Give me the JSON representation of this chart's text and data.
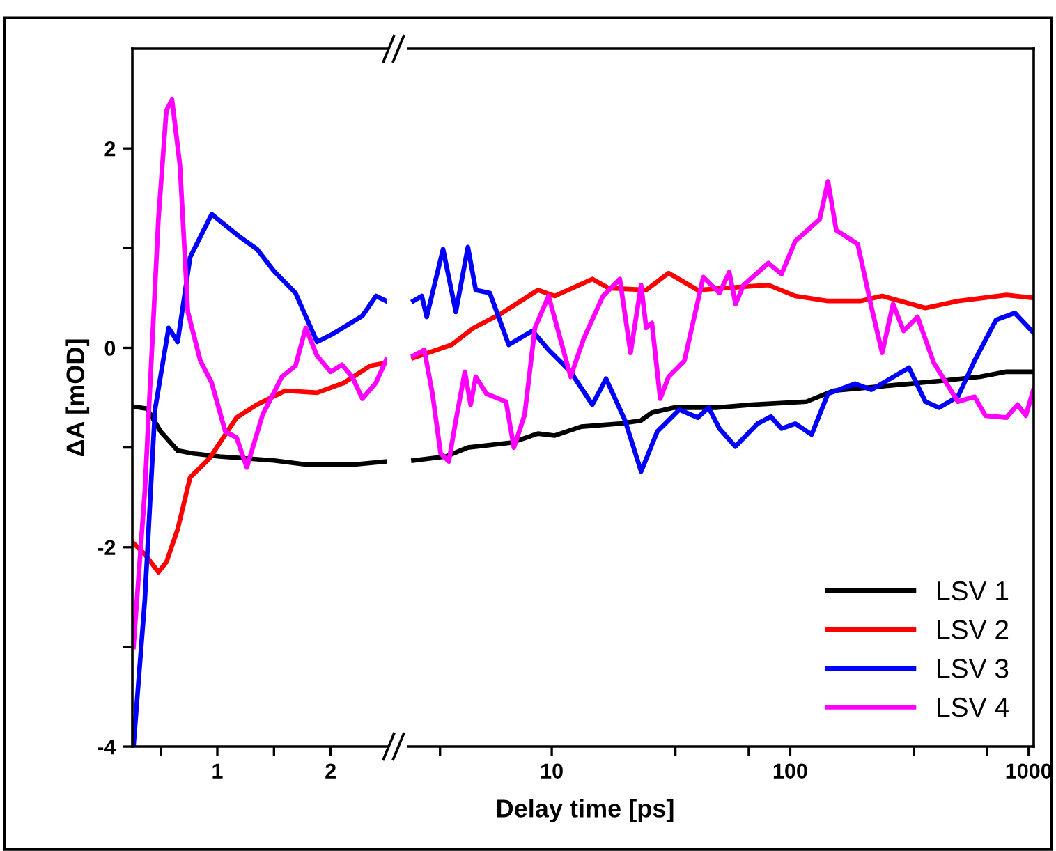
{
  "chart_data": [
    {
      "type": "line",
      "ylabel": "ΔA [mOD]",
      "xlim": [
        0.25,
        2.5
      ],
      "xticks": [
        {
          "value": 0.5,
          "label": null
        },
        1,
        {
          "value": 1.5,
          "label": null
        },
        2
      ],
      "ylim": [
        -4,
        3
      ],
      "yticks": [
        -4,
        {
          "value": -3,
          "label": null
        },
        -2,
        {
          "value": -1,
          "label": null
        },
        0,
        {
          "value": 1,
          "label": null
        },
        2
      ],
      "marker": "none",
      "line_style": "solid",
      "grid": false,
      "series": [
        {
          "color": "#000000",
          "x": [
            0.26,
            0.38,
            0.5,
            0.65,
            0.79,
            1.02,
            1.5,
            1.78,
            2.21,
            2.49
          ],
          "values": [
            -0.59,
            -0.61,
            -0.84,
            -1.03,
            -1.06,
            -1.09,
            -1.13,
            -1.17,
            -1.17,
            -1.14
          ]
        },
        {
          "color": "#ff0000",
          "x": [
            0.26,
            0.36,
            0.48,
            0.55,
            0.65,
            0.76,
            0.93,
            1.17,
            1.35,
            1.6,
            1.88,
            2.12,
            2.35,
            2.49
          ],
          "values": [
            -1.96,
            -2.07,
            -2.25,
            -2.15,
            -1.82,
            -1.3,
            -1.11,
            -0.7,
            -0.57,
            -0.43,
            -0.45,
            -0.35,
            -0.18,
            -0.15
          ]
        },
        {
          "color": "#0000ff",
          "x": [
            0.26,
            0.36,
            0.45,
            0.57,
            0.65,
            0.76,
            0.95,
            1.19,
            1.35,
            1.5,
            1.69,
            1.88,
            2.02,
            2.28,
            2.4,
            2.49
          ],
          "values": [
            -4.0,
            -2.53,
            -0.62,
            0.2,
            0.06,
            0.91,
            1.34,
            1.12,
            0.99,
            0.77,
            0.55,
            0.06,
            0.14,
            0.32,
            0.52,
            0.47
          ]
        },
        {
          "color": "#ff00ff",
          "x": [
            0.26,
            0.36,
            0.48,
            0.55,
            0.6,
            0.67,
            0.74,
            0.85,
            0.95,
            1.07,
            1.17,
            1.26,
            1.4,
            1.57,
            1.69,
            1.78,
            1.88,
            2.0,
            2.1,
            2.19,
            2.28,
            2.4,
            2.49
          ],
          "values": [
            -3.0,
            -1.44,
            1.29,
            2.38,
            2.49,
            1.83,
            0.36,
            -0.13,
            -0.35,
            -0.84,
            -0.9,
            -1.2,
            -0.67,
            -0.29,
            -0.18,
            0.2,
            -0.08,
            -0.24,
            -0.17,
            -0.29,
            -0.51,
            -0.35,
            -0.12
          ]
        }
      ]
    },
    {
      "type": "line",
      "xlabel": "Delay time [ps]",
      "log": "x",
      "xlim": [
        2.5,
        1050
      ],
      "xticks": [
        {
          "value": 3.4,
          "label": null
        },
        10,
        {
          "value": 33,
          "label": null
        },
        {
          "value": 67,
          "label": null
        },
        100,
        {
          "value": 330,
          "label": null
        },
        {
          "value": 670,
          "label": null
        },
        1000
      ],
      "ylim": [
        -4,
        3
      ],
      "tick_labels": "x",
      "marker": "none",
      "line_style": "solid",
      "grid": false,
      "legend": "bottom right",
      "series": [
        {
          "name": "LSV 1",
          "color": "#000000",
          "x": [
            2.63,
            3.6,
            4.45,
            6.8,
            8.75,
            10.3,
            13.3,
            19.3,
            23.6,
            26.3,
            32.6,
            49,
            69,
            117,
            152,
            256,
            432,
            625,
            807,
            1050
          ],
          "values": [
            -1.13,
            -1.09,
            -1.0,
            -0.95,
            -0.86,
            -0.88,
            -0.79,
            -0.76,
            -0.73,
            -0.65,
            -0.6,
            -0.6,
            -0.57,
            -0.54,
            -0.43,
            -0.38,
            -0.33,
            -0.29,
            -0.24,
            -0.24
          ]
        },
        {
          "name": "LSV 2",
          "color": "#ff0000",
          "x": [
            2.63,
            3.8,
            4.7,
            6.1,
            8.75,
            10.3,
            14.8,
            17.3,
            24.9,
            30.9,
            40.9,
            81,
            105,
            144,
            197,
            243,
            369,
            505,
            807,
            1050
          ],
          "values": [
            -0.1,
            0.03,
            0.2,
            0.34,
            0.58,
            0.52,
            0.69,
            0.6,
            0.58,
            0.75,
            0.58,
            0.63,
            0.52,
            0.47,
            0.47,
            0.52,
            0.4,
            0.47,
            0.53,
            0.5
          ]
        },
        {
          "name": "LSV 3",
          "color": "#0000ff",
          "x": [
            2.63,
            2.85,
            2.99,
            3.5,
            3.96,
            4.45,
            4.8,
            5.5,
            6.6,
            8.3,
            9.7,
            12,
            14.8,
            16.9,
            20.3,
            23.7,
            27.7,
            34.3,
            40.9,
            45.5,
            50.5,
            58.9,
            73,
            83,
            92,
            105,
            123,
            144,
            187,
            219,
            315,
            369,
            421,
            505,
            593,
            730,
            875,
            1050
          ],
          "values": [
            0.47,
            0.52,
            0.31,
            0.99,
            0.36,
            1.01,
            0.58,
            0.55,
            0.03,
            0.17,
            -0.02,
            -0.24,
            -0.57,
            -0.31,
            -0.73,
            -1.24,
            -0.84,
            -0.62,
            -0.7,
            -0.6,
            -0.81,
            -0.99,
            -0.76,
            -0.69,
            -0.81,
            -0.76,
            -0.87,
            -0.46,
            -0.36,
            -0.42,
            -0.2,
            -0.54,
            -0.6,
            -0.49,
            -0.13,
            0.28,
            0.35,
            0.15
          ]
        },
        {
          "name": "LSV 4",
          "color": "#ff00ff",
          "x": [
            2.63,
            2.92,
            3.16,
            3.42,
            3.7,
            3.96,
            4.32,
            4.57,
            4.8,
            5.32,
            6.43,
            6.94,
            7.7,
            8.5,
            9.7,
            12,
            13.6,
            16.4,
            19.3,
            21.4,
            23.7,
            24.9,
            26.3,
            28.5,
            30.9,
            36,
            43.2,
            50.5,
            55.5,
            59,
            63.8,
            81,
            92,
            105,
            133,
            144,
            156,
            192,
            219,
            243,
            270,
            299,
            342,
            400,
            505,
            593,
            659,
            807,
            898,
            973,
            1050
          ],
          "values": [
            -0.08,
            -0.02,
            -0.46,
            -1.06,
            -1.14,
            -0.73,
            -0.24,
            -0.57,
            -0.29,
            -0.46,
            -0.54,
            -1.0,
            -0.67,
            0.2,
            0.52,
            -0.29,
            0.09,
            0.52,
            0.69,
            -0.05,
            0.63,
            0.2,
            0.25,
            -0.51,
            -0.29,
            -0.13,
            0.71,
            0.55,
            0.76,
            0.44,
            0.63,
            0.85,
            0.74,
            1.07,
            1.29,
            1.67,
            1.18,
            1.04,
            0.41,
            -0.05,
            0.44,
            0.17,
            0.31,
            -0.15,
            -0.54,
            -0.49,
            -0.68,
            -0.7,
            -0.57,
            -0.68,
            -0.41
          ]
        }
      ]
    }
  ]
}
